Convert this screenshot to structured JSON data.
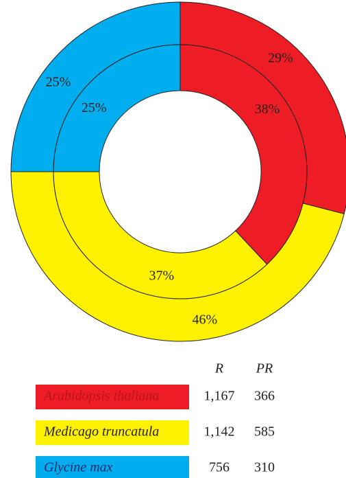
{
  "chart_data": {
    "type": "donut",
    "categories": [
      "Arabidopsis thaliana",
      "Medicago truncatula",
      "Glycine max"
    ],
    "colors": [
      "#ee1c25",
      "#fff200",
      "#00aeef"
    ],
    "series": [
      {
        "name": "PR",
        "values": [
          29,
          46,
          25
        ],
        "value_labels": [
          "29%",
          "46%",
          "25%"
        ]
      },
      {
        "name": "R",
        "values": [
          38,
          37,
          25
        ],
        "value_labels": [
          "38%",
          "37%",
          "25%"
        ]
      }
    ],
    "table": {
      "columns": [
        "R",
        "PR"
      ],
      "rows": [
        [
          "1,167",
          "366"
        ],
        [
          "1,142",
          "585"
        ],
        [
          "756",
          "310"
        ]
      ]
    }
  }
}
